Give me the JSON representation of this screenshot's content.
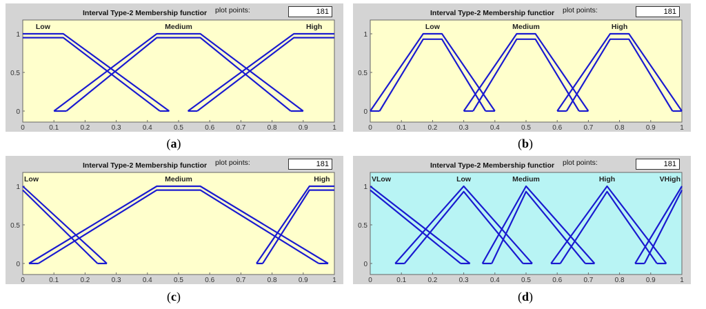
{
  "panels": [
    {
      "id": "a",
      "caption_letter": "a",
      "title": "Interval Type-2 Membership functior",
      "plot_points_label": "plot points:",
      "plot_points_value": "181"
    },
    {
      "id": "b",
      "caption_letter": "b",
      "title": "Interval Type-2 Membership functior",
      "plot_points_label": "plot points:",
      "plot_points_value": "181"
    },
    {
      "id": "c",
      "caption_letter": "c",
      "title": "Interval Type-2 Membership functior",
      "plot_points_label": "plot points:",
      "plot_points_value": "181"
    },
    {
      "id": "d",
      "caption_letter": "d",
      "title": "Interval Type-2 Membership functior",
      "plot_points_label": "plot points:",
      "plot_points_value": "181"
    }
  ],
  "chart_data": [
    {
      "type": "line",
      "panel": "a",
      "bg_color": "#ffffcc",
      "line_color": "#1a1ad0",
      "xlim": [
        0,
        1
      ],
      "ylim": [
        0,
        1
      ],
      "x_ticks": [
        "0",
        "0.1",
        "0.2",
        "0.3",
        "0.4",
        "0.5",
        "0.6",
        "0.7",
        "0.8",
        "0.9",
        "1"
      ],
      "y_ticks": [
        "0",
        "0.5",
        "1"
      ],
      "series": [
        {
          "name": "Low",
          "upper": [
            [
              0,
              1
            ],
            [
              0.13,
              1
            ],
            [
              0.47,
              0
            ]
          ],
          "lower": [
            [
              0,
              0.95
            ],
            [
              0.13,
              0.95
            ],
            [
              0.44,
              0
            ]
          ]
        },
        {
          "name": "Medium",
          "upper": [
            [
              0.1,
              0
            ],
            [
              0.43,
              1
            ],
            [
              0.57,
              1
            ],
            [
              0.9,
              0
            ]
          ],
          "lower": [
            [
              0.14,
              0
            ],
            [
              0.43,
              0.95
            ],
            [
              0.57,
              0.95
            ],
            [
              0.86,
              0
            ]
          ]
        },
        {
          "name": "High",
          "upper": [
            [
              0.53,
              0
            ],
            [
              0.87,
              1
            ],
            [
              1,
              1
            ]
          ],
          "lower": [
            [
              0.56,
              0
            ],
            [
              0.87,
              0.95
            ],
            [
              1,
              0.95
            ]
          ]
        }
      ]
    },
    {
      "type": "line",
      "panel": "b",
      "bg_color": "#ffffcc",
      "line_color": "#1a1ad0",
      "xlim": [
        0,
        1
      ],
      "ylim": [
        0,
        1
      ],
      "x_ticks": [
        "0",
        "0.1",
        "0.2",
        "0.3",
        "0.4",
        "0.5",
        "0.6",
        "0.7",
        "0.8",
        "0.9",
        "1"
      ],
      "y_ticks": [
        "0",
        "0.5",
        "1"
      ],
      "series": [
        {
          "name": "Low",
          "upper": [
            [
              0,
              0
            ],
            [
              0.17,
              1
            ],
            [
              0.23,
              1
            ],
            [
              0.4,
              0
            ]
          ],
          "lower": [
            [
              0.03,
              0
            ],
            [
              0.17,
              0.93
            ],
            [
              0.23,
              0.93
            ],
            [
              0.37,
              0
            ]
          ]
        },
        {
          "name": "Medium",
          "upper": [
            [
              0.3,
              0
            ],
            [
              0.47,
              1
            ],
            [
              0.53,
              1
            ],
            [
              0.7,
              0
            ]
          ],
          "lower": [
            [
              0.33,
              0
            ],
            [
              0.47,
              0.93
            ],
            [
              0.53,
              0.93
            ],
            [
              0.67,
              0
            ]
          ]
        },
        {
          "name": "High",
          "upper": [
            [
              0.6,
              0
            ],
            [
              0.77,
              1
            ],
            [
              0.83,
              1
            ],
            [
              1,
              0
            ]
          ],
          "lower": [
            [
              0.63,
              0
            ],
            [
              0.77,
              0.93
            ],
            [
              0.83,
              0.93
            ],
            [
              0.97,
              0
            ]
          ]
        }
      ]
    },
    {
      "type": "line",
      "panel": "c",
      "bg_color": "#ffffcc",
      "line_color": "#1a1ad0",
      "xlim": [
        0,
        1
      ],
      "ylim": [
        0,
        1
      ],
      "x_ticks": [
        "0",
        "0.1",
        "0.2",
        "0.3",
        "0.4",
        "0.5",
        "0.6",
        "0.7",
        "0.8",
        "0.9",
        "1"
      ],
      "y_ticks": [
        "0",
        "0.5",
        "1"
      ],
      "series": [
        {
          "name": "Low",
          "upper": [
            [
              0,
              1
            ],
            [
              0.27,
              0
            ]
          ],
          "lower": [
            [
              0,
              0.95
            ],
            [
              0.24,
              0
            ]
          ]
        },
        {
          "name": "Medium",
          "upper": [
            [
              0.02,
              0
            ],
            [
              0.43,
              1
            ],
            [
              0.57,
              1
            ],
            [
              0.98,
              0
            ]
          ],
          "lower": [
            [
              0.05,
              0
            ],
            [
              0.43,
              0.95
            ],
            [
              0.57,
              0.95
            ],
            [
              0.95,
              0
            ]
          ]
        },
        {
          "name": "High",
          "upper": [
            [
              0.75,
              0
            ],
            [
              0.92,
              1
            ],
            [
              1,
              1
            ]
          ],
          "lower": [
            [
              0.77,
              0
            ],
            [
              0.92,
              0.95
            ],
            [
              1,
              0.95
            ]
          ]
        }
      ]
    },
    {
      "type": "line",
      "panel": "d",
      "bg_color": "#b8f4f4",
      "line_color": "#1a1ad0",
      "xlim": [
        0,
        1
      ],
      "ylim": [
        0,
        1
      ],
      "x_ticks": [
        "0",
        "0.1",
        "0.2",
        "0.3",
        "0.4",
        "0.5",
        "0.6",
        "0.7",
        "0.8",
        "0.9",
        "1"
      ],
      "y_ticks": [
        "0",
        "0.5",
        "1"
      ],
      "series": [
        {
          "name": "VLow",
          "label": "VLow",
          "upper": [
            [
              0,
              1
            ],
            [
              0.32,
              0
            ]
          ],
          "lower": [
            [
              0,
              0.95
            ],
            [
              0.29,
              0
            ]
          ]
        },
        {
          "name": "Low",
          "label": "Low",
          "upper": [
            [
              0.08,
              0
            ],
            [
              0.3,
              1
            ],
            [
              0.52,
              0
            ]
          ],
          "lower": [
            [
              0.11,
              0
            ],
            [
              0.3,
              0.93
            ],
            [
              0.49,
              0
            ]
          ]
        },
        {
          "name": "Medium",
          "label": "Medium",
          "upper": [
            [
              0.36,
              0
            ],
            [
              0.5,
              1
            ],
            [
              0.72,
              0
            ]
          ],
          "lower": [
            [
              0.39,
              0
            ],
            [
              0.5,
              0.93
            ],
            [
              0.69,
              0
            ]
          ]
        },
        {
          "name": "High",
          "label": "High",
          "upper": [
            [
              0.58,
              0
            ],
            [
              0.76,
              1
            ],
            [
              0.95,
              0
            ]
          ],
          "lower": [
            [
              0.61,
              0
            ],
            [
              0.76,
              0.93
            ],
            [
              0.92,
              0
            ]
          ]
        },
        {
          "name": "VHigh",
          "label": "VHigh",
          "upper": [
            [
              0.85,
              0
            ],
            [
              1,
              1
            ]
          ],
          "lower": [
            [
              0.88,
              0
            ],
            [
              1,
              0.95
            ]
          ]
        }
      ]
    }
  ]
}
